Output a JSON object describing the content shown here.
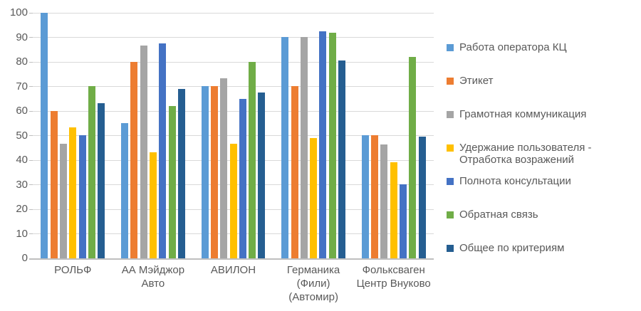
{
  "chart_data": {
    "type": "bar",
    "title": "",
    "categories": [
      "РОЛЬФ",
      "АА Мэйджор\nАвто",
      "АВИЛОН",
      "Германика\n(Фили)\n(Автомир)",
      "Фольксваген\nЦентр Внуково"
    ],
    "series": [
      {
        "name": "Работа оператора КЦ",
        "color": "#5B9BD5",
        "values": [
          100,
          55,
          70,
          90,
          50
        ]
      },
      {
        "name": "Этикет",
        "color": "#ED7D31",
        "values": [
          60,
          80,
          70,
          70,
          50
        ]
      },
      {
        "name": "Грамотная коммуникация",
        "color": "#A5A5A5",
        "values": [
          46.7,
          86.7,
          73.3,
          90,
          46.5
        ]
      },
      {
        "name": "Удержание пользователя - Отработка возражений",
        "color": "#FFC000",
        "values": [
          53.3,
          43.3,
          46.7,
          49,
          39
        ]
      },
      {
        "name": "Полнота консультации",
        "color": "#4472C4",
        "values": [
          50,
          87.5,
          65,
          92.5,
          30
        ]
      },
      {
        "name": "Обратная связь",
        "color": "#70AD47",
        "values": [
          70,
          62,
          80,
          92,
          82
        ]
      },
      {
        "name": "Общее по критериям",
        "color": "#255E91",
        "values": [
          63.3,
          69,
          67.5,
          80.5,
          49.6
        ]
      }
    ],
    "ylim": [
      0,
      100
    ],
    "ytick_step": 10,
    "ytick_labels": [
      "0",
      "10",
      "20",
      "30",
      "40",
      "50",
      "60",
      "70",
      "80",
      "90",
      "100"
    ],
    "grid": true,
    "legend_position": "right",
    "colors": {
      "axis_text": "#595959",
      "gridline": "#D9D9D9",
      "baseline": "#BFBFBF",
      "background": "#FFFFFF"
    }
  }
}
